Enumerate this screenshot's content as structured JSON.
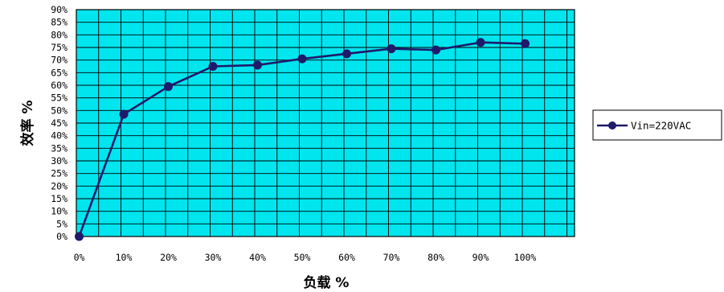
{
  "chart_data": {
    "type": "line",
    "categories": [
      "0%",
      "10%",
      "20%",
      "30%",
      "40%",
      "50%",
      "60%",
      "70%",
      "80%",
      "90%",
      "100%"
    ],
    "series": [
      {
        "name": "Vin=220VAC",
        "color": "#1f1a6b",
        "values": [
          0,
          48.5,
          59.5,
          67.5,
          68,
          70.5,
          72.5,
          74.5,
          74,
          77,
          76.5
        ]
      }
    ],
    "xlabel": "负载 %",
    "ylabel": "效率 %",
    "ylim": [
      0,
      90
    ],
    "y_ticks": [
      "0%",
      "5%",
      "10%",
      "15%",
      "20%",
      "25%",
      "30%",
      "35%",
      "40%",
      "45%",
      "50%",
      "55%",
      "60%",
      "65%",
      "70%",
      "75%",
      "80%",
      "85%",
      "90%"
    ],
    "grid": true,
    "plot_background": "#00e5ee",
    "legend_position": "right"
  }
}
